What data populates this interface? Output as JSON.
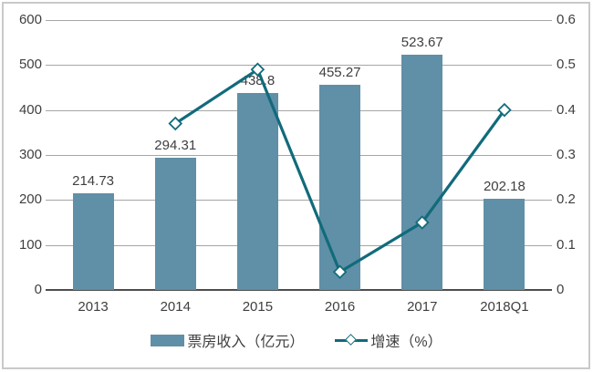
{
  "chart_data": {
    "type": "bar+line combo",
    "title": "",
    "categories": [
      "2013",
      "2014",
      "2015",
      "2016",
      "2017",
      "2018Q1"
    ],
    "series": [
      {
        "name": "票房收入（亿元）",
        "type": "bar",
        "axis": "left",
        "values": [
          214.73,
          294.31,
          438.8,
          455.27,
          523.67,
          202.18
        ],
        "labels": [
          "214.73",
          "294.31",
          "438.8",
          "455.27",
          "523.67",
          "202.18"
        ]
      },
      {
        "name": "增速（%）",
        "type": "line",
        "axis": "right",
        "marker": "diamond",
        "values": [
          null,
          0.37,
          0.49,
          0.04,
          0.15,
          0.4
        ]
      }
    ],
    "left_axis": {
      "min": 0,
      "max": 600,
      "step": 100,
      "ticks": [
        "0",
        "100",
        "200",
        "300",
        "400",
        "500",
        "600"
      ]
    },
    "right_axis": {
      "min": 0,
      "max": 0.6,
      "step": 0.1,
      "ticks": [
        "0",
        "0.1",
        "0.2",
        "0.3",
        "0.4",
        "0.5",
        "0.6"
      ]
    },
    "grid": true,
    "legend_position": "bottom"
  },
  "legend": {
    "bar_label": "票房收入（亿元）",
    "line_label": "增速（%）"
  },
  "colors": {
    "bar": "#5f90a7",
    "line": "#116b7b",
    "marker_fill": "#ffffff",
    "grid": "#a6a6a6",
    "axis": "#4d4d4d",
    "text": "#3f3f3f",
    "frame": "#c9c9c9"
  }
}
